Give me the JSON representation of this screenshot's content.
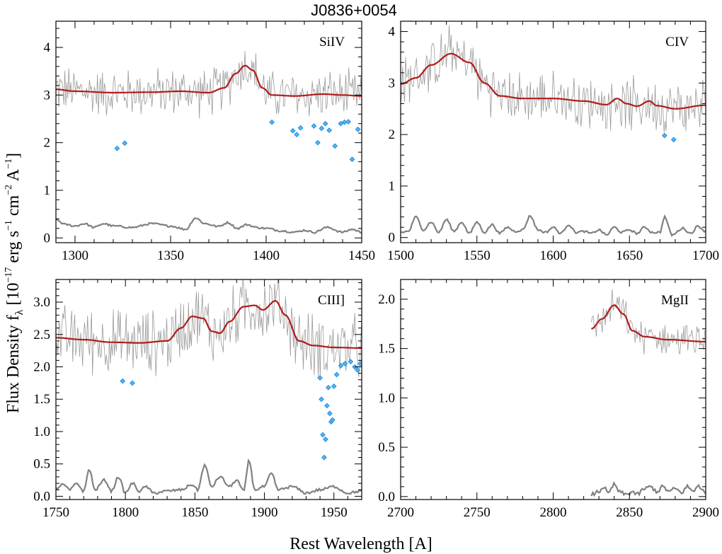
{
  "figure": {
    "title": "J0836+0054",
    "xlabel": "Rest Wavelength [A]",
    "ylabel_main": "Flux Density f",
    "ylabel_sub": "λ",
    "ylabel_units": "[10",
    "ylabel_exp1": "−17",
    "ylabel_mid": " erg s",
    "ylabel_exp2": "−1",
    "ylabel_mid2": " cm",
    "ylabel_exp3": "−2",
    "ylabel_mid3": " A",
    "ylabel_exp4": "−1",
    "ylabel_end": "]"
  },
  "colors": {
    "fit": "#b01c1c",
    "spectrum": "#9a9a9a",
    "error": "#808080",
    "masked": "#1e90e0"
  },
  "chart_data": [
    {
      "type": "line",
      "label": "SiIV",
      "xlim": [
        1290,
        1450
      ],
      "ylim": [
        -0.1,
        4.55
      ],
      "xticks": [
        1300,
        1350,
        1400,
        1450
      ],
      "yticks": [
        0,
        1,
        2,
        3,
        4
      ],
      "spectrum_x": [
        1290,
        1450
      ],
      "fit": [
        [
          1290,
          3.12
        ],
        [
          1300,
          3.08
        ],
        [
          1320,
          3.05
        ],
        [
          1340,
          3.06
        ],
        [
          1355,
          3.08
        ],
        [
          1370,
          3.05
        ],
        [
          1378,
          3.15
        ],
        [
          1384,
          3.45
        ],
        [
          1389,
          3.62
        ],
        [
          1393,
          3.52
        ],
        [
          1398,
          3.15
        ],
        [
          1403,
          3.0
        ],
        [
          1415,
          2.98
        ],
        [
          1430,
          3.02
        ],
        [
          1440,
          3.0
        ],
        [
          1450,
          2.98
        ]
      ],
      "error": [
        [
          1290,
          0.38
        ],
        [
          1295,
          0.28
        ],
        [
          1300,
          0.25
        ],
        [
          1305,
          0.3
        ],
        [
          1310,
          0.22
        ],
        [
          1315,
          0.3
        ],
        [
          1320,
          0.25
        ],
        [
          1330,
          0.22
        ],
        [
          1340,
          0.3
        ],
        [
          1350,
          0.25
        ],
        [
          1358,
          0.18
        ],
        [
          1363,
          0.42
        ],
        [
          1368,
          0.3
        ],
        [
          1375,
          0.24
        ],
        [
          1380,
          0.32
        ],
        [
          1385,
          0.2
        ],
        [
          1390,
          0.28
        ],
        [
          1395,
          0.22
        ],
        [
          1400,
          0.2
        ],
        [
          1408,
          0.15
        ],
        [
          1415,
          0.12
        ],
        [
          1420,
          0.16
        ],
        [
          1425,
          0.12
        ],
        [
          1432,
          0.22
        ],
        [
          1440,
          0.12
        ],
        [
          1445,
          0.18
        ],
        [
          1450,
          0.12
        ]
      ],
      "masked": [
        [
          1322,
          1.88
        ],
        [
          1326,
          1.99
        ],
        [
          1403,
          2.43
        ],
        [
          1414,
          2.25
        ],
        [
          1416,
          2.17
        ],
        [
          1418,
          2.31
        ],
        [
          1425,
          2.35
        ],
        [
          1427,
          2.0
        ],
        [
          1429,
          2.3
        ],
        [
          1431,
          2.4
        ],
        [
          1433,
          2.26
        ],
        [
          1436,
          1.93
        ],
        [
          1439,
          2.4
        ],
        [
          1441,
          2.43
        ],
        [
          1443,
          2.44
        ],
        [
          1445,
          1.65
        ],
        [
          1448,
          2.28
        ]
      ]
    },
    {
      "type": "line",
      "label": "CIV",
      "xlim": [
        1500,
        1700
      ],
      "ylim": [
        -0.1,
        4.2
      ],
      "xticks": [
        1500,
        1550,
        1600,
        1650,
        1700
      ],
      "yticks": [
        0,
        1,
        2,
        3,
        4
      ],
      "spectrum_x": [
        1500,
        1700
      ],
      "fit": [
        [
          1500,
          2.98
        ],
        [
          1510,
          3.1
        ],
        [
          1520,
          3.35
        ],
        [
          1533,
          3.57
        ],
        [
          1545,
          3.4
        ],
        [
          1555,
          3.0
        ],
        [
          1565,
          2.75
        ],
        [
          1580,
          2.7
        ],
        [
          1600,
          2.7
        ],
        [
          1620,
          2.65
        ],
        [
          1635,
          2.58
        ],
        [
          1642,
          2.7
        ],
        [
          1648,
          2.6
        ],
        [
          1655,
          2.55
        ],
        [
          1663,
          2.65
        ],
        [
          1668,
          2.56
        ],
        [
          1680,
          2.5
        ],
        [
          1700,
          2.57
        ]
      ],
      "error": [
        [
          1500,
          0.1
        ],
        [
          1505,
          0.12
        ],
        [
          1510,
          0.4
        ],
        [
          1515,
          0.15
        ],
        [
          1520,
          0.3
        ],
        [
          1525,
          0.1
        ],
        [
          1530,
          0.35
        ],
        [
          1535,
          0.12
        ],
        [
          1540,
          0.3
        ],
        [
          1545,
          0.08
        ],
        [
          1550,
          0.3
        ],
        [
          1555,
          0.1
        ],
        [
          1560,
          0.25
        ],
        [
          1565,
          0.08
        ],
        [
          1570,
          0.2
        ],
        [
          1575,
          0.12
        ],
        [
          1580,
          0.15
        ],
        [
          1585,
          0.42
        ],
        [
          1590,
          0.15
        ],
        [
          1595,
          0.1
        ],
        [
          1600,
          0.2
        ],
        [
          1605,
          0.08
        ],
        [
          1610,
          0.25
        ],
        [
          1615,
          0.1
        ],
        [
          1620,
          0.12
        ],
        [
          1625,
          0.08
        ],
        [
          1630,
          0.15
        ],
        [
          1635,
          0.05
        ],
        [
          1640,
          0.2
        ],
        [
          1645,
          0.1
        ],
        [
          1650,
          0.15
        ],
        [
          1655,
          0.08
        ],
        [
          1660,
          0.2
        ],
        [
          1665,
          0.1
        ],
        [
          1670,
          0.1
        ],
        [
          1673,
          0.4
        ],
        [
          1678,
          0.05
        ],
        [
          1685,
          0.18
        ],
        [
          1690,
          0.08
        ],
        [
          1695,
          0.22
        ],
        [
          1700,
          0.12
        ]
      ],
      "masked": [
        [
          1673,
          1.98
        ],
        [
          1679,
          1.9
        ]
      ]
    },
    {
      "type": "line",
      "label": "CIII]",
      "xlim": [
        1750,
        1970
      ],
      "ylim": [
        -0.05,
        3.35
      ],
      "xticks": [
        1750,
        1800,
        1850,
        1900,
        1950
      ],
      "yticks": [
        0.0,
        0.5,
        1.0,
        1.5,
        2.0,
        2.5,
        3.0
      ],
      "spectrum_x": [
        1750,
        1970
      ],
      "fit": [
        [
          1750,
          2.45
        ],
        [
          1770,
          2.42
        ],
        [
          1790,
          2.38
        ],
        [
          1810,
          2.37
        ],
        [
          1830,
          2.4
        ],
        [
          1840,
          2.6
        ],
        [
          1848,
          2.78
        ],
        [
          1856,
          2.75
        ],
        [
          1862,
          2.55
        ],
        [
          1868,
          2.52
        ],
        [
          1875,
          2.7
        ],
        [
          1885,
          2.93
        ],
        [
          1893,
          2.95
        ],
        [
          1899,
          2.88
        ],
        [
          1908,
          3.02
        ],
        [
          1915,
          2.8
        ],
        [
          1925,
          2.4
        ],
        [
          1935,
          2.33
        ],
        [
          1950,
          2.3
        ],
        [
          1970,
          2.29
        ]
      ],
      "error": [
        [
          1750,
          0.12
        ],
        [
          1755,
          0.18
        ],
        [
          1760,
          0.1
        ],
        [
          1765,
          0.2
        ],
        [
          1770,
          0.08
        ],
        [
          1774,
          0.42
        ],
        [
          1778,
          0.1
        ],
        [
          1785,
          0.25
        ],
        [
          1790,
          0.08
        ],
        [
          1795,
          0.3
        ],
        [
          1800,
          0.05
        ],
        [
          1805,
          0.2
        ],
        [
          1810,
          0.08
        ],
        [
          1815,
          0.15
        ],
        [
          1820,
          0.05
        ],
        [
          1830,
          0.08
        ],
        [
          1840,
          0.1
        ],
        [
          1848,
          0.18
        ],
        [
          1852,
          0.1
        ],
        [
          1857,
          0.48
        ],
        [
          1862,
          0.15
        ],
        [
          1868,
          0.3
        ],
        [
          1875,
          0.15
        ],
        [
          1880,
          0.25
        ],
        [
          1885,
          0.08
        ],
        [
          1889,
          0.55
        ],
        [
          1893,
          0.1
        ],
        [
          1900,
          0.15
        ],
        [
          1905,
          0.35
        ],
        [
          1910,
          0.1
        ],
        [
          1920,
          0.15
        ],
        [
          1930,
          0.05
        ],
        [
          1940,
          0.1
        ],
        [
          1950,
          0.15
        ],
        [
          1960,
          0.05
        ],
        [
          1970,
          0.08
        ]
      ],
      "masked": [
        [
          1798,
          1.78
        ],
        [
          1805,
          1.75
        ],
        [
          1940,
          1.83
        ],
        [
          1941,
          1.5
        ],
        [
          1942,
          0.95
        ],
        [
          1943,
          0.6
        ],
        [
          1944,
          0.88
        ],
        [
          1945,
          1.4
        ],
        [
          1946,
          1.68
        ],
        [
          1947,
          1.28
        ],
        [
          1948,
          1.15
        ],
        [
          1949,
          1.18
        ],
        [
          1950,
          1.7
        ],
        [
          1952,
          1.88
        ],
        [
          1955,
          2.02
        ],
        [
          1958,
          2.05
        ],
        [
          1962,
          2.08
        ],
        [
          1965,
          2.0
        ],
        [
          1967,
          1.95
        ],
        [
          1969,
          2.05
        ]
      ]
    },
    {
      "type": "line",
      "label": "MgII",
      "xlim": [
        2700,
        2900
      ],
      "ylim": [
        -0.03,
        2.2
      ],
      "xticks": [
        2700,
        2750,
        2800,
        2850,
        2900
      ],
      "yticks": [
        0.0,
        0.5,
        1.0,
        1.5,
        2.0
      ],
      "spectrum_x": [
        2825,
        2900
      ],
      "fit": [
        [
          2825,
          1.7
        ],
        [
          2832,
          1.8
        ],
        [
          2840,
          1.94
        ],
        [
          2846,
          1.85
        ],
        [
          2852,
          1.68
        ],
        [
          2860,
          1.62
        ],
        [
          2875,
          1.59
        ],
        [
          2900,
          1.57
        ]
      ],
      "error": [
        [
          2825,
          0.02
        ],
        [
          2830,
          0.05
        ],
        [
          2833,
          0.1
        ],
        [
          2836,
          0.03
        ],
        [
          2840,
          0.12
        ],
        [
          2844,
          0.04
        ],
        [
          2848,
          0.02
        ],
        [
          2852,
          0.05
        ],
        [
          2855,
          0.02
        ],
        [
          2860,
          0.08
        ],
        [
          2864,
          0.1
        ],
        [
          2868,
          0.05
        ],
        [
          2872,
          0.1
        ],
        [
          2876,
          0.05
        ],
        [
          2880,
          0.08
        ],
        [
          2884,
          0.04
        ],
        [
          2888,
          0.1
        ],
        [
          2892,
          0.05
        ],
        [
          2895,
          0.12
        ],
        [
          2898,
          0.06
        ],
        [
          2900,
          0.02
        ]
      ],
      "masked": []
    }
  ]
}
